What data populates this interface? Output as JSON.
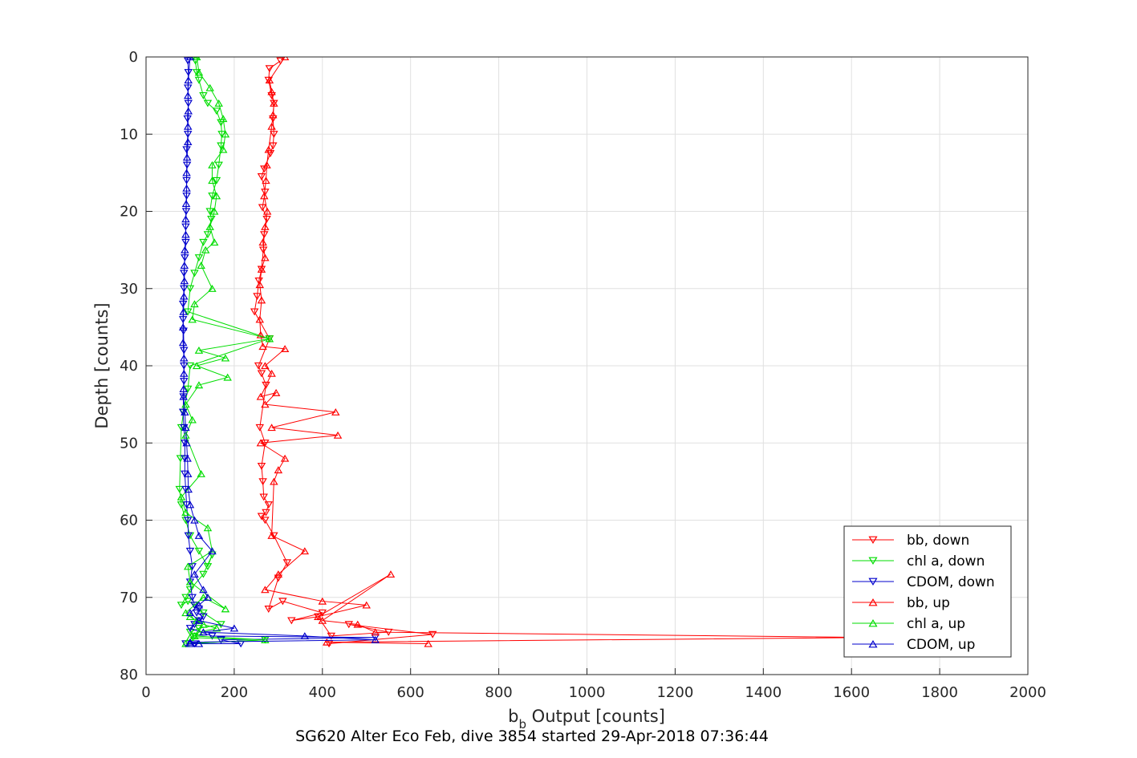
{
  "chart_data": {
    "type": "line",
    "title": "SG620 Alter Eco Feb, dive 3854 started 29-Apr-2018 07:36:44",
    "xlabel_main": "b",
    "xlabel_sub": "b",
    "xlabel_rest": " Output [counts]",
    "ylabel": "Depth [counts]",
    "xlim": [
      0,
      2000
    ],
    "ylim": [
      0,
      80
    ],
    "y_reversed": true,
    "grid": true,
    "legend_position": "bottom-right",
    "x_ticks": [
      "0",
      "200",
      "400",
      "600",
      "800",
      "1000",
      "1200",
      "1400",
      "1600",
      "1800",
      "2000"
    ],
    "y_ticks": [
      "0",
      "10",
      "20",
      "30",
      "40",
      "50",
      "60",
      "70",
      "80"
    ],
    "series": [
      {
        "name": "bb, down",
        "color": "#ff0000",
        "marker": "triangle-down",
        "x": [
          305,
          280,
          278,
          285,
          290,
          288,
          290,
          288,
          282,
          268,
          262,
          270,
          264,
          274,
          268,
          266,
          262,
          256,
          252,
          246,
          280,
          255,
          262,
          272,
          258,
          270,
          262,
          265,
          267,
          278,
          272,
          262,
          270,
          290,
          320,
          300,
          278,
          310,
          400,
          330,
          390,
          420,
          550,
          460,
          650,
          415
        ],
        "y": [
          0.5,
          1.5,
          3.0,
          5.0,
          6.0,
          8.0,
          10.0,
          11.5,
          12.5,
          14.5,
          15.5,
          17.5,
          19.5,
          21.0,
          23.0,
          25.0,
          27.5,
          29.0,
          31.0,
          33.0,
          36.5,
          40.0,
          41.0,
          42.5,
          48.0,
          50.0,
          53.0,
          55.0,
          57.0,
          58.0,
          59.0,
          59.5,
          60.0,
          62.0,
          65.5,
          67.5,
          71.5,
          70.5,
          72.0,
          73.0,
          72.5,
          75.0,
          74.5,
          73.5,
          74.8,
          76.0
        ]
      },
      {
        "name": "chl a, down",
        "color": "#00dd00",
        "marker": "triangle-down",
        "x": [
          112,
          115,
          120,
          130,
          140,
          160,
          170,
          172,
          170,
          165,
          160,
          150,
          145,
          148,
          140,
          130,
          120,
          110,
          100,
          95,
          280,
          100,
          95,
          85,
          80,
          78,
          76,
          80,
          90,
          100,
          120,
          140,
          150,
          130,
          100,
          90,
          80,
          95,
          110,
          130,
          170,
          120,
          100,
          110,
          270,
          90
        ],
        "y": [
          0.5,
          2.0,
          3.0,
          5.0,
          6.0,
          7.0,
          8.5,
          10.0,
          11.5,
          14.0,
          16.0,
          18.0,
          20.0,
          21.0,
          23.0,
          24.0,
          26.0,
          28.0,
          30.0,
          33.0,
          36.5,
          40.0,
          43.0,
          46.0,
          48.0,
          52.0,
          56.0,
          58.0,
          60.0,
          62.0,
          64.0,
          66.0,
          64.5,
          67.0,
          69.0,
          70.0,
          71.0,
          70.5,
          71.0,
          72.0,
          73.5,
          74.0,
          74.5,
          75.0,
          75.5,
          76.0
        ]
      },
      {
        "name": "CDOM, down",
        "color": "#0000cc",
        "marker": "triangle-down",
        "x": [
          95,
          96,
          95,
          96,
          94,
          95,
          92,
          93,
          92,
          92,
          91,
          90,
          90,
          88,
          86,
          86,
          84,
          84,
          85,
          86,
          86,
          86,
          85,
          84,
          86,
          88,
          88,
          88,
          90,
          92,
          95,
          96,
          100,
          105,
          100,
          105,
          110,
          120,
          115,
          130,
          120,
          110,
          100,
          150,
          520,
          170,
          215,
          110,
          90
        ],
        "y": [
          0.5,
          2.0,
          4.0,
          6.0,
          8.0,
          10.0,
          12.0,
          14.0,
          16.0,
          18.0,
          20.0,
          22.0,
          24.0,
          26.0,
          28.0,
          30.0,
          32.0,
          34.0,
          35.5,
          38.0,
          40.0,
          42.0,
          44.0,
          46.0,
          48.0,
          50.0,
          52.0,
          54.0,
          56.0,
          58.0,
          60.0,
          62.0,
          64.0,
          66.0,
          68.0,
          70.0,
          71.0,
          71.5,
          72.0,
          72.5,
          73.0,
          73.5,
          74.0,
          75.0,
          75.2,
          75.5,
          76.0,
          76.0,
          76.0
        ]
      },
      {
        "name": "bb, up",
        "color": "#ff0000",
        "marker": "triangle-up",
        "x": [
          315,
          280,
          285,
          290,
          288,
          285,
          278,
          274,
          272,
          268,
          275,
          270,
          265,
          270,
          262,
          258,
          262,
          258,
          260,
          265,
          315,
          270,
          285,
          260,
          295,
          270,
          430,
          285,
          435,
          260,
          315,
          300,
          290,
          285,
          360,
          300,
          270,
          400,
          500,
          390,
          555,
          400,
          480,
          520,
          1650,
          410,
          640
        ],
        "y": [
          0.0,
          3.0,
          4.5,
          6.0,
          7.5,
          9.0,
          12.0,
          14.0,
          16.0,
          18.0,
          20.0,
          22.0,
          24.0,
          26.0,
          27.5,
          29.5,
          31.5,
          34.0,
          36.0,
          37.5,
          37.8,
          40.0,
          41.0,
          44.0,
          43.5,
          45.0,
          46.0,
          48.0,
          49.0,
          50.0,
          52.0,
          53.5,
          55.0,
          62.0,
          64.0,
          67.0,
          69.0,
          70.5,
          71.0,
          72.5,
          67.0,
          73.0,
          73.5,
          74.5,
          75.2,
          75.8,
          76.0
        ]
      },
      {
        "name": "chl a, up",
        "color": "#00dd00",
        "marker": "triangle-up",
        "x": [
          115,
          120,
          145,
          165,
          175,
          180,
          175,
          150,
          150,
          160,
          155,
          145,
          155,
          135,
          125,
          150,
          110,
          105,
          280,
          120,
          180,
          115,
          185,
          120,
          90,
          105,
          90,
          125,
          80,
          90,
          140,
          150,
          95,
          100,
          180,
          130,
          90,
          100,
          115,
          130,
          160,
          120,
          110,
          100,
          270,
          90
        ],
        "y": [
          0.0,
          2.0,
          4.0,
          6.0,
          8.0,
          10.0,
          12.0,
          14.0,
          16.0,
          18.0,
          20.0,
          22.0,
          24.0,
          25.0,
          27.0,
          30.0,
          32.0,
          34.0,
          36.5,
          38.0,
          39.0,
          40.0,
          41.5,
          42.5,
          45.0,
          47.0,
          49.0,
          54.0,
          57.0,
          59.0,
          61.0,
          64.0,
          66.0,
          68.0,
          71.5,
          70.0,
          72.0,
          72.5,
          73.0,
          73.5,
          74.0,
          74.5,
          75.0,
          75.2,
          75.5,
          76.0
        ]
      },
      {
        "name": "CDOM, up",
        "color": "#0000cc",
        "marker": "triangle-up",
        "x": [
          100,
          96,
          95,
          96,
          95,
          95,
          93,
          92,
          92,
          91,
          90,
          90,
          88,
          87,
          87,
          86,
          85,
          84,
          84,
          86,
          86,
          85,
          85,
          88,
          90,
          92,
          94,
          95,
          96,
          100,
          110,
          120,
          150,
          110,
          130,
          140,
          120,
          100,
          120,
          200,
          130,
          360,
          520,
          100,
          120,
          100
        ],
        "y": [
          0.0,
          3.0,
          5.0,
          7.0,
          9.0,
          11.0,
          13.0,
          15.0,
          17.0,
          19.0,
          21.0,
          23.0,
          25.0,
          27.0,
          29.0,
          31.0,
          33.0,
          35.0,
          37.0,
          39.0,
          41.0,
          43.0,
          44.0,
          46.0,
          48.0,
          50.0,
          52.0,
          54.0,
          56.0,
          58.0,
          60.0,
          62.0,
          64.0,
          67.0,
          69.0,
          70.0,
          71.0,
          72.0,
          73.0,
          74.0,
          74.5,
          75.0,
          75.5,
          75.8,
          76.0,
          76.0
        ]
      }
    ]
  }
}
